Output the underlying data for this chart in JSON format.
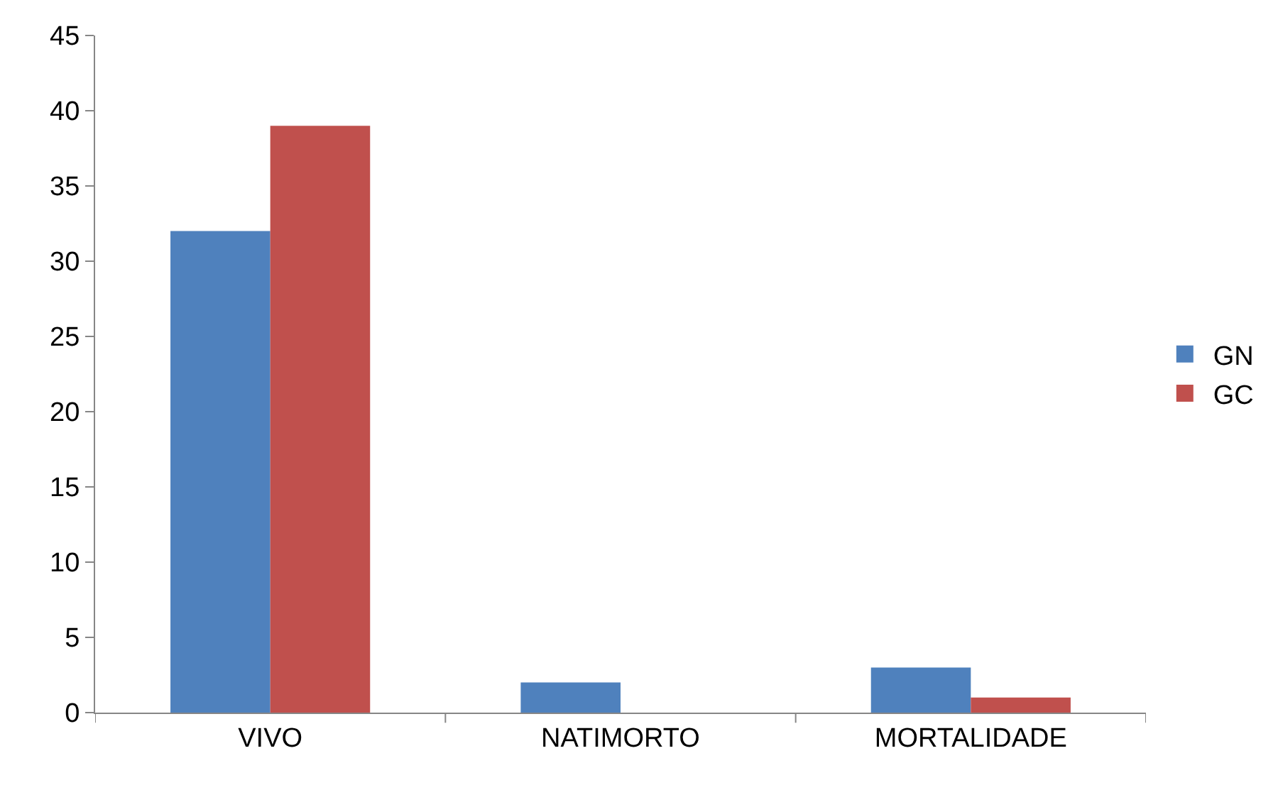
{
  "chart_data": {
    "type": "bar",
    "categories": [
      "VIVO",
      "NATIMORTO",
      "MORTALIDADE"
    ],
    "series": [
      {
        "name": "GN",
        "color": "#4f81bd",
        "values": [
          32,
          2,
          3
        ]
      },
      {
        "name": "GC",
        "color": "#c0504d",
        "values": [
          39,
          0,
          1
        ]
      }
    ],
    "ylim": [
      0,
      45
    ],
    "yticks": [
      0,
      5,
      10,
      15,
      20,
      25,
      30,
      35,
      40,
      45
    ],
    "grid": false,
    "legend": "right"
  }
}
